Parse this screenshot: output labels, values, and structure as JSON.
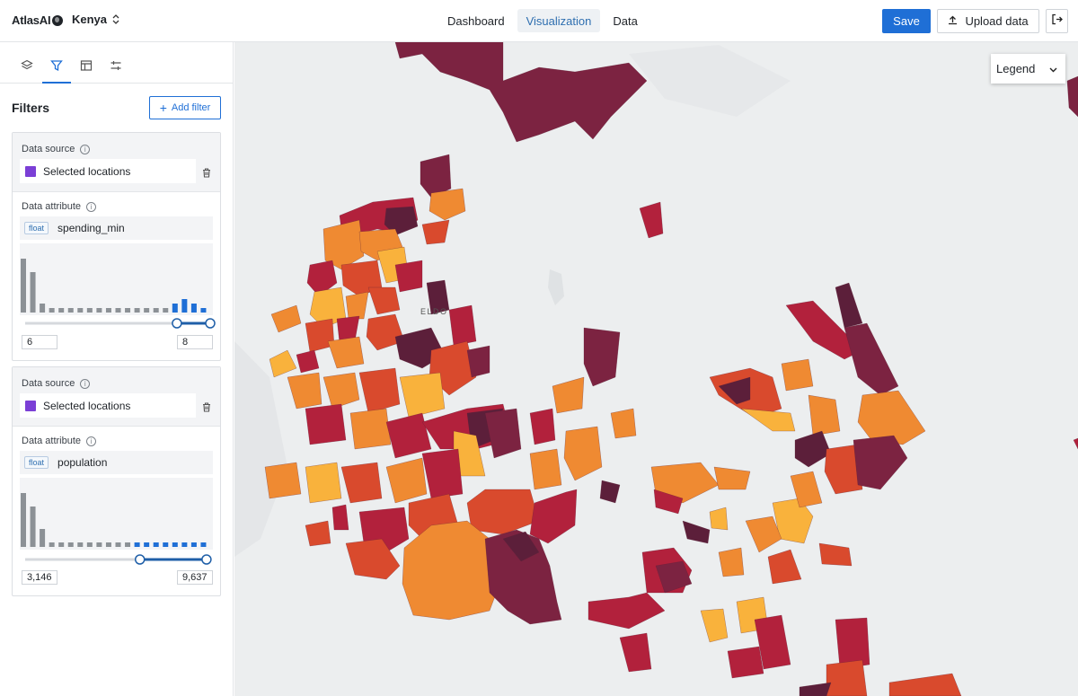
{
  "app": {
    "brand": "AtlasAI",
    "country": "Kenya"
  },
  "nav": {
    "tabs": [
      {
        "label": "Dashboard"
      },
      {
        "label": "Visualization"
      },
      {
        "label": "Data"
      }
    ],
    "active": "Visualization"
  },
  "actions": {
    "save_label": "Save",
    "upload_label": "Upload data"
  },
  "sidebar": {
    "tab_icons": [
      "layers-icon",
      "filter-icon",
      "table-icon",
      "settings-sliders-icon"
    ],
    "active_tab": "filter-icon",
    "title": "Filters",
    "add_filter_label": "Add filter",
    "filters": [
      {
        "source_label": "Data source",
        "source_value": "Selected locations",
        "source_color": "#7b3fd6",
        "attr_label": "Data attribute",
        "attr_type": "float",
        "attr_name": "spending_min",
        "histogram": [
          12,
          9,
          2,
          1,
          1,
          1,
          1,
          1,
          1,
          1,
          1,
          1,
          1,
          1,
          1,
          1,
          2,
          3,
          2,
          1
        ],
        "histogram_selected_from_bin": 16,
        "range_min": "6",
        "range_max": "8",
        "range_low_fraction": 0.82,
        "range_high_fraction": 1.0
      },
      {
        "source_label": "Data source",
        "source_value": "Selected locations",
        "source_color": "#7b3fd6",
        "attr_label": "Data attribute",
        "attr_type": "float",
        "attr_name": "population",
        "histogram": [
          12,
          9,
          4,
          1,
          1,
          1,
          1,
          1,
          1,
          1,
          1,
          1,
          1,
          1,
          1,
          1,
          1,
          1,
          1,
          1
        ],
        "histogram_selected_from_bin": 12,
        "range_min": "3,146",
        "range_max": "9,637",
        "range_low_fraction": 0.62,
        "range_high_fraction": 0.98
      }
    ]
  },
  "map": {
    "city_label": "ELDO",
    "legend_label": "Legend",
    "palette": [
      "#7c2341",
      "#b2213c",
      "#d94a2d",
      "#ef8a32",
      "#f9b23c",
      "#5c1f3a"
    ]
  }
}
